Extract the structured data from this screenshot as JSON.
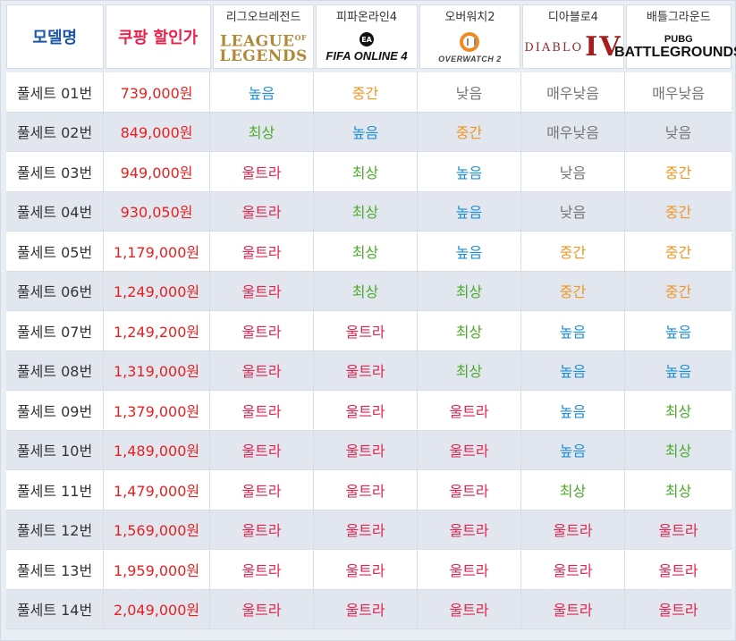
{
  "header": {
    "model_label": "모델명",
    "price_label": "쿠팡 할인가",
    "games": [
      {
        "name": "리그오브레전드",
        "logo_top": "LEAGUE",
        "logo_of": "OF",
        "logo_bottom": "LEGENDS",
        "icon": "league-of-legends-logo"
      },
      {
        "name": "피파온라인4",
        "logo_badge": "EA",
        "logo_text": "FIFA ONLINE 4",
        "icon": "fifa-online-4-logo"
      },
      {
        "name": "오버워치2",
        "logo_text": "OVERWATCH 2",
        "icon": "overwatch-2-logo"
      },
      {
        "name": "디아블로4",
        "logo_left": "DIABLO",
        "logo_iv": "IV",
        "icon": "diablo-4-logo"
      },
      {
        "name": "배틀그라운드",
        "logo_small": "PUBG",
        "logo_big": "BATTLEGROUNDS",
        "icon": "pubg-battlegrounds-logo"
      }
    ]
  },
  "level_colors": {
    "울트라": "#e0244d",
    "최상": "#4caa2b",
    "높음": "#1e8fd6",
    "중간": "#f09520",
    "낮음": "#757575",
    "매우낮음": "#757575"
  },
  "rows": [
    {
      "model": "풀세트 01번",
      "price": "739,000원",
      "levels": [
        "높음",
        "중간",
        "낮음",
        "매우낮음",
        "매우낮음"
      ]
    },
    {
      "model": "풀세트 02번",
      "price": "849,000원",
      "levels": [
        "최상",
        "높음",
        "중간",
        "매우낮음",
        "낮음"
      ]
    },
    {
      "model": "풀세트 03번",
      "price": "949,000원",
      "levels": [
        "울트라",
        "최상",
        "높음",
        "낮음",
        "중간"
      ]
    },
    {
      "model": "풀세트 04번",
      "price": "930,050원",
      "levels": [
        "울트라",
        "최상",
        "높음",
        "낮음",
        "중간"
      ]
    },
    {
      "model": "풀세트 05번",
      "price": "1,179,000원",
      "levels": [
        "울트라",
        "최상",
        "높음",
        "중간",
        "중간"
      ]
    },
    {
      "model": "풀세트 06번",
      "price": "1,249,000원",
      "levels": [
        "울트라",
        "최상",
        "최상",
        "중간",
        "중간"
      ]
    },
    {
      "model": "풀세트 07번",
      "price": "1,249,200원",
      "levels": [
        "울트라",
        "울트라",
        "최상",
        "높음",
        "높음"
      ]
    },
    {
      "model": "풀세트 08번",
      "price": "1,319,000원",
      "levels": [
        "울트라",
        "울트라",
        "최상",
        "높음",
        "높음"
      ]
    },
    {
      "model": "풀세트 09번",
      "price": "1,379,000원",
      "levels": [
        "울트라",
        "울트라",
        "울트라",
        "높음",
        "최상"
      ]
    },
    {
      "model": "풀세트 10번",
      "price": "1,489,000원",
      "levels": [
        "울트라",
        "울트라",
        "울트라",
        "높음",
        "최상"
      ]
    },
    {
      "model": "풀세트 11번",
      "price": "1,479,000원",
      "levels": [
        "울트라",
        "울트라",
        "울트라",
        "최상",
        "최상"
      ]
    },
    {
      "model": "풀세트 12번",
      "price": "1,569,000원",
      "levels": [
        "울트라",
        "울트라",
        "울트라",
        "울트라",
        "울트라"
      ]
    },
    {
      "model": "풀세트 13번",
      "price": "1,959,000원",
      "levels": [
        "울트라",
        "울트라",
        "울트라",
        "울트라",
        "울트라"
      ]
    },
    {
      "model": "풀세트 14번",
      "price": "2,049,000원",
      "levels": [
        "울트라",
        "울트라",
        "울트라",
        "울트라",
        "울트라"
      ]
    }
  ]
}
